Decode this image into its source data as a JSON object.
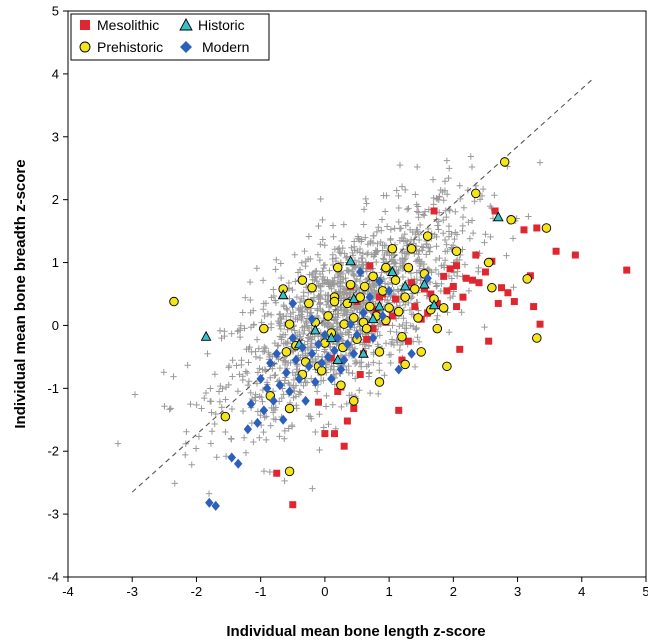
{
  "chart_data": {
    "type": "scatter",
    "xlabel": "Individual mean bone length z-score",
    "ylabel": "Individual mean bone breadth z-score",
    "xlim": [
      -4,
      5
    ],
    "ylim": [
      -4,
      5
    ],
    "xticks": [
      "-4",
      "-3",
      "-2",
      "-1",
      "0",
      "1",
      "2",
      "3",
      "4",
      "5"
    ],
    "yticks": [
      "-4",
      "-3",
      "-2",
      "-1",
      "0",
      "1",
      "2",
      "3",
      "4",
      "5"
    ],
    "grid": false,
    "legend_position": "top-left",
    "reference_line": {
      "x": [
        -3.0,
        4.15
      ],
      "y": [
        -2.65,
        3.9
      ],
      "style": "dashed"
    },
    "background_cloud": {
      "marker": "plus",
      "color": "#9a9a9a",
      "approx_count": 1500
    },
    "series": [
      {
        "name": "Mesolithic",
        "marker": "square",
        "color": "#e0262f",
        "points": [
          [
            4.7,
            0.88
          ],
          [
            3.9,
            1.12
          ],
          [
            3.6,
            1.18
          ],
          [
            3.3,
            1.55
          ],
          [
            3.1,
            1.52
          ],
          [
            3.2,
            0.79
          ],
          [
            3.25,
            0.3
          ],
          [
            3.35,
            0.02
          ],
          [
            2.85,
            0.52
          ],
          [
            2.95,
            0.38
          ],
          [
            2.75,
            0.6
          ],
          [
            2.65,
            1.82
          ],
          [
            2.6,
            1.02
          ],
          [
            2.5,
            0.85
          ],
          [
            2.4,
            0.68
          ],
          [
            2.3,
            0.72
          ],
          [
            2.35,
            1.12
          ],
          [
            2.2,
            0.75
          ],
          [
            2.15,
            0.45
          ],
          [
            2.05,
            0.95
          ],
          [
            2.0,
            0.62
          ],
          [
            2.05,
            0.3
          ],
          [
            1.95,
            0.9
          ],
          [
            1.9,
            0.55
          ],
          [
            1.85,
            0.78
          ],
          [
            1.75,
            0.35
          ],
          [
            1.7,
            1.82
          ],
          [
            1.65,
            0.5
          ],
          [
            1.55,
            0.58
          ],
          [
            2.7,
            0.35
          ],
          [
            2.55,
            -0.25
          ],
          [
            2.1,
            -0.38
          ],
          [
            1.6,
            0.2
          ],
          [
            1.4,
            0.3
          ],
          [
            1.35,
            0.68
          ],
          [
            1.3,
            -0.25
          ],
          [
            1.2,
            -0.55
          ],
          [
            1.15,
            -1.35
          ],
          [
            1.1,
            0.42
          ],
          [
            1.05,
            0.15
          ],
          [
            0.95,
            0.05
          ],
          [
            0.9,
            0.5
          ],
          [
            0.85,
            0.45
          ],
          [
            0.8,
            0.25
          ],
          [
            0.75,
            -0.05
          ],
          [
            0.65,
            -0.22
          ],
          [
            0.6,
            -0.45
          ],
          [
            0.55,
            -0.78
          ],
          [
            0.45,
            -1.32
          ],
          [
            0.35,
            -1.52
          ],
          [
            0.3,
            -1.92
          ],
          [
            0.25,
            -0.98
          ],
          [
            0.2,
            -1.05
          ],
          [
            0.15,
            -1.72
          ],
          [
            0.0,
            -1.72
          ],
          [
            -0.1,
            -1.22
          ],
          [
            -0.5,
            -2.85
          ],
          [
            -0.75,
            -2.35
          ],
          [
            0.7,
            0.95
          ],
          [
            0.4,
            0.62
          ],
          [
            0.5,
            0.38
          ],
          [
            0.1,
            -0.52
          ],
          [
            1.5,
            0.1
          ]
        ]
      },
      {
        "name": "Prehistoric",
        "marker": "circle",
        "color": "#f3e41b",
        "points": [
          [
            -2.35,
            0.38
          ],
          [
            -1.55,
            -1.45
          ],
          [
            -0.55,
            -2.32
          ],
          [
            -0.55,
            -1.32
          ],
          [
            -0.95,
            -0.05
          ],
          [
            -0.85,
            -1.12
          ],
          [
            -0.6,
            -0.42
          ],
          [
            -0.65,
            0.58
          ],
          [
            -0.55,
            0.02
          ],
          [
            -0.45,
            -0.32
          ],
          [
            -0.35,
            -0.78
          ],
          [
            -0.3,
            -0.58
          ],
          [
            -0.25,
            0.35
          ],
          [
            -0.2,
            0.6
          ],
          [
            -0.15,
            0.05
          ],
          [
            -0.1,
            -0.65
          ],
          [
            -0.05,
            -0.72
          ],
          [
            0.0,
            -0.28
          ],
          [
            0.05,
            0.15
          ],
          [
            0.1,
            -0.12
          ],
          [
            0.15,
            0.45
          ],
          [
            0.2,
            0.92
          ],
          [
            0.25,
            -0.95
          ],
          [
            0.28,
            -0.35
          ],
          [
            0.3,
            0.02
          ],
          [
            0.35,
            0.35
          ],
          [
            0.4,
            0.65
          ],
          [
            0.45,
            0.12
          ],
          [
            0.5,
            -0.22
          ],
          [
            0.55,
            0.45
          ],
          [
            0.6,
            0.05
          ],
          [
            0.62,
            0.62
          ],
          [
            0.65,
            -0.05
          ],
          [
            0.7,
            0.3
          ],
          [
            0.75,
            0.78
          ],
          [
            0.8,
            0.15
          ],
          [
            0.85,
            -0.42
          ],
          [
            0.9,
            0.55
          ],
          [
            0.95,
            0.92
          ],
          [
            1.0,
            0.28
          ],
          [
            1.05,
            1.22
          ],
          [
            1.1,
            0.72
          ],
          [
            1.15,
            0.22
          ],
          [
            1.2,
            -0.18
          ],
          [
            1.25,
            0.45
          ],
          [
            1.3,
            0.92
          ],
          [
            1.35,
            1.22
          ],
          [
            1.4,
            0.58
          ],
          [
            1.45,
            0.12
          ],
          [
            1.5,
            -0.42
          ],
          [
            1.55,
            0.82
          ],
          [
            1.6,
            1.42
          ],
          [
            1.65,
            0.25
          ],
          [
            1.7,
            0.42
          ],
          [
            1.75,
            -0.05
          ],
          [
            1.85,
            0.28
          ],
          [
            1.9,
            -0.65
          ],
          [
            2.05,
            1.18
          ],
          [
            2.35,
            2.1
          ],
          [
            2.55,
            1.0
          ],
          [
            2.6,
            0.6
          ],
          [
            2.8,
            2.6
          ],
          [
            2.9,
            1.68
          ],
          [
            3.15,
            0.74
          ],
          [
            3.3,
            -0.2
          ],
          [
            3.45,
            1.55
          ],
          [
            0.45,
            -1.2
          ],
          [
            0.85,
            -0.9
          ],
          [
            1.25,
            -0.62
          ],
          [
            -0.35,
            0.72
          ],
          [
            0.15,
            0.38
          ],
          [
            0.95,
            0.08
          ]
        ]
      },
      {
        "name": "Historic",
        "marker": "triangle",
        "color": "#35c1c9",
        "points": [
          [
            -1.85,
            -0.18
          ],
          [
            -0.65,
            0.48
          ],
          [
            -0.15,
            -0.08
          ],
          [
            0.1,
            -0.2
          ],
          [
            0.2,
            -0.55
          ],
          [
            0.4,
            1.02
          ],
          [
            0.45,
            0.42
          ],
          [
            0.6,
            -0.45
          ],
          [
            0.85,
            0.3
          ],
          [
            1.05,
            0.85
          ],
          [
            1.25,
            0.62
          ],
          [
            1.55,
            0.65
          ],
          [
            1.7,
            0.32
          ],
          [
            2.7,
            1.72
          ],
          [
            -0.4,
            -0.3
          ],
          [
            0.75,
            0.1
          ]
        ]
      },
      {
        "name": "Modern",
        "marker": "diamond",
        "color": "#2d5fbd",
        "points": [
          [
            -1.8,
            -2.82
          ],
          [
            -1.7,
            -2.87
          ],
          [
            -1.45,
            -2.1
          ],
          [
            -1.35,
            -2.2
          ],
          [
            -1.2,
            -1.65
          ],
          [
            -1.15,
            -1.25
          ],
          [
            -1.05,
            -1.55
          ],
          [
            -1.0,
            -0.85
          ],
          [
            -0.95,
            -1.35
          ],
          [
            -0.9,
            -1.0
          ],
          [
            -0.85,
            -0.6
          ],
          [
            -0.8,
            -1.2
          ],
          [
            -0.75,
            -0.45
          ],
          [
            -0.7,
            -0.95
          ],
          [
            -0.65,
            -1.5
          ],
          [
            -0.6,
            -0.75
          ],
          [
            -0.55,
            -1.05
          ],
          [
            -0.5,
            -0.2
          ],
          [
            -0.45,
            -0.55
          ],
          [
            -0.4,
            -0.85
          ],
          [
            -0.35,
            -0.35
          ],
          [
            -0.3,
            -1.2
          ],
          [
            -0.25,
            -0.65
          ],
          [
            -0.2,
            -0.45
          ],
          [
            -0.15,
            -0.9
          ],
          [
            -0.1,
            -0.3
          ],
          [
            -0.05,
            -0.6
          ],
          [
            0.0,
            -0.15
          ],
          [
            0.05,
            -0.5
          ],
          [
            0.1,
            -0.85
          ],
          [
            0.15,
            -0.4
          ],
          [
            0.2,
            -0.2
          ],
          [
            0.25,
            -0.7
          ],
          [
            0.3,
            -0.55
          ],
          [
            0.35,
            -0.3
          ],
          [
            0.4,
            0.02
          ],
          [
            0.45,
            -0.45
          ],
          [
            0.5,
            -0.15
          ],
          [
            0.6,
            0.2
          ],
          [
            0.7,
            0.45
          ],
          [
            0.75,
            -0.2
          ],
          [
            0.9,
            0.15
          ],
          [
            1.0,
            0.55
          ],
          [
            1.15,
            -0.7
          ],
          [
            1.35,
            -0.45
          ],
          [
            1.6,
            0.75
          ],
          [
            -0.5,
            0.35
          ],
          [
            -0.2,
            0.1
          ],
          [
            0.55,
            0.85
          ],
          [
            0.85,
            0.7
          ]
        ]
      }
    ]
  }
}
